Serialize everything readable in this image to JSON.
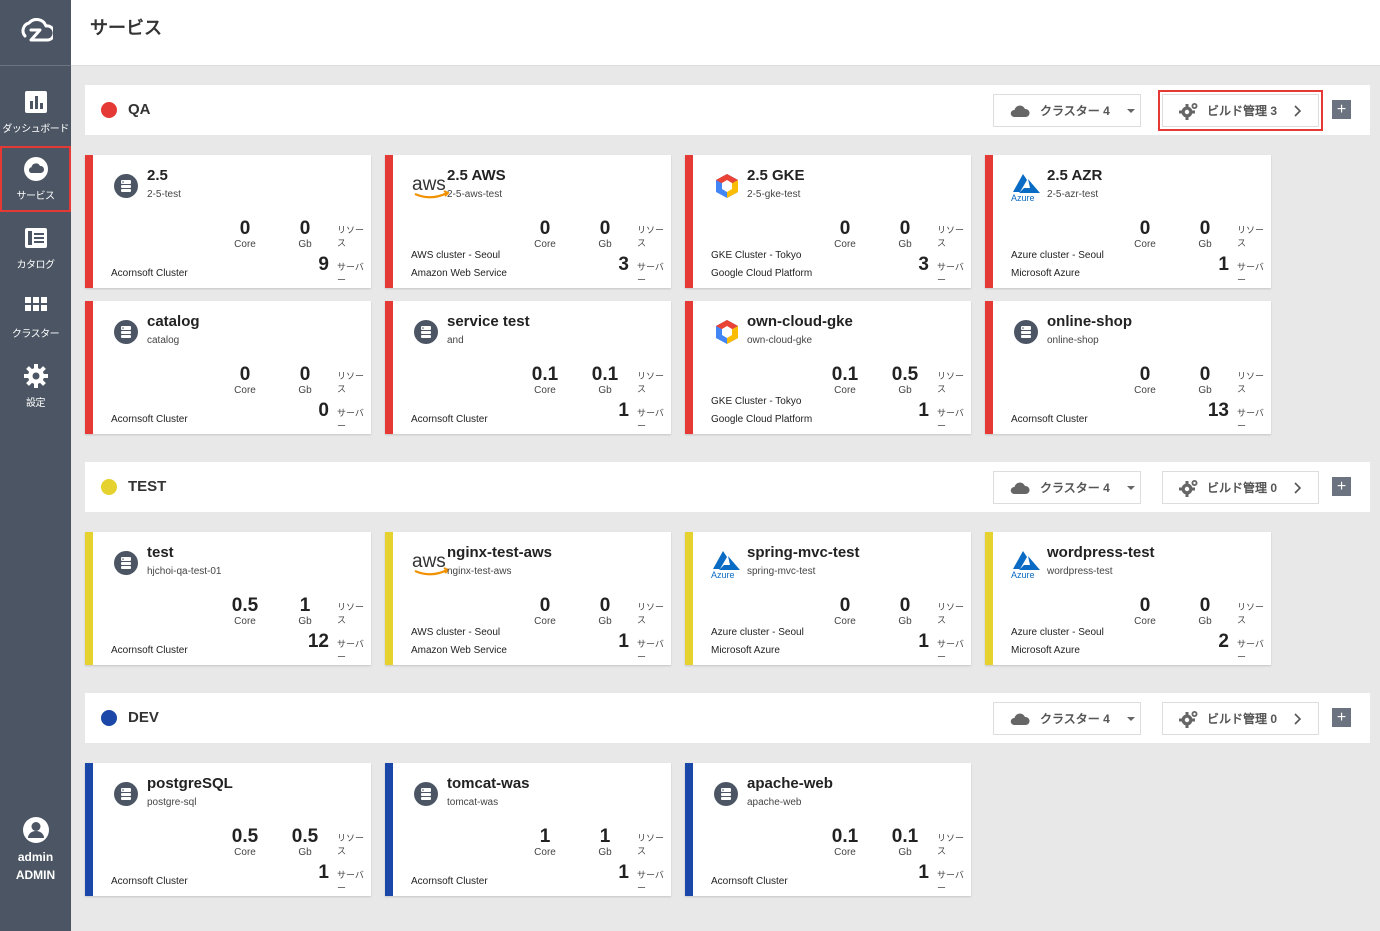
{
  "header": {
    "title": "サービス"
  },
  "sidebar": {
    "items": [
      {
        "label": "ダッシュボード",
        "icon": "dashboard-icon"
      },
      {
        "label": "サービス",
        "icon": "cloud-icon"
      },
      {
        "label": "カタログ",
        "icon": "catalog-icon"
      },
      {
        "label": "クラスター",
        "icon": "grid-icon"
      },
      {
        "label": "設定",
        "icon": "gear-icon"
      }
    ],
    "user": {
      "name": "admin",
      "role": "ADMIN"
    }
  },
  "labels": {
    "core": "Core",
    "gb": "Gb",
    "resource": "リソース",
    "server": "サーバー"
  },
  "groups": [
    {
      "name": "QA",
      "color": "#e53935",
      "cluster_label": "クラスター 4",
      "build_label": "ビルド管理 3",
      "cards": [
        {
          "title": "2.5",
          "sub": "2-5-test",
          "icon": "service-icon",
          "core": "0",
          "gb": "0",
          "servers": "9",
          "line1": "",
          "line2": "Acornsoft Cluster"
        },
        {
          "title": "2.5 AWS",
          "sub": "2-5-aws-test",
          "icon": "aws-icon",
          "core": "0",
          "gb": "0",
          "servers": "3",
          "line1": "AWS cluster - Seoul",
          "line2": "Amazon Web Service"
        },
        {
          "title": "2.5 GKE",
          "sub": "2-5-gke-test",
          "icon": "gke-icon",
          "core": "0",
          "gb": "0",
          "servers": "3",
          "line1": "GKE Cluster - Tokyo",
          "line2": "Google Cloud Platform"
        },
        {
          "title": "2.5 AZR",
          "sub": "2-5-azr-test",
          "icon": "azure-icon",
          "core": "0",
          "gb": "0",
          "servers": "1",
          "line1": "Azure cluster - Seoul",
          "line2": "Microsoft Azure"
        },
        {
          "title": "catalog",
          "sub": "catalog",
          "icon": "service-icon",
          "core": "0",
          "gb": "0",
          "servers": "0",
          "line1": "",
          "line2": "Acornsoft Cluster"
        },
        {
          "title": "service test",
          "sub": "and",
          "icon": "service-icon",
          "core": "0.1",
          "gb": "0.1",
          "servers": "1",
          "line1": "",
          "line2": "Acornsoft Cluster"
        },
        {
          "title": "own-cloud-gke",
          "sub": "own-cloud-gke",
          "icon": "gke-icon",
          "core": "0.1",
          "gb": "0.5",
          "servers": "1",
          "line1": "GKE Cluster - Tokyo",
          "line2": "Google Cloud Platform"
        },
        {
          "title": "online-shop",
          "sub": "online-shop",
          "icon": "service-icon",
          "core": "0",
          "gb": "0",
          "servers": "13",
          "line1": "",
          "line2": "Acornsoft Cluster"
        }
      ]
    },
    {
      "name": "TEST",
      "color": "#e5d22e",
      "cluster_label": "クラスター 4",
      "build_label": "ビルド管理 0",
      "cards": [
        {
          "title": "test",
          "sub": "hjchoi-qa-test-01",
          "icon": "service-icon",
          "core": "0.5",
          "gb": "1",
          "servers": "12",
          "line1": "",
          "line2": "Acornsoft Cluster"
        },
        {
          "title": "nginx-test-aws",
          "sub": "nginx-test-aws",
          "icon": "aws-icon",
          "core": "0",
          "gb": "0",
          "servers": "1",
          "line1": "AWS cluster - Seoul",
          "line2": "Amazon Web Service"
        },
        {
          "title": "spring-mvc-test",
          "sub": "spring-mvc-test",
          "icon": "azure-icon",
          "core": "0",
          "gb": "0",
          "servers": "1",
          "line1": "Azure cluster - Seoul",
          "line2": "Microsoft Azure"
        },
        {
          "title": "wordpress-test",
          "sub": "wordpress-test",
          "icon": "azure-icon",
          "core": "0",
          "gb": "0",
          "servers": "2",
          "line1": "Azure cluster - Seoul",
          "line2": "Microsoft Azure"
        }
      ]
    },
    {
      "name": "DEV",
      "color": "#1a47a8",
      "cluster_label": "クラスター 4",
      "build_label": "ビルド管理 0",
      "cards": [
        {
          "title": "postgreSQL",
          "sub": "postgre-sql",
          "icon": "service-icon",
          "core": "0.5",
          "gb": "0.5",
          "servers": "1",
          "line1": "",
          "line2": "Acornsoft Cluster"
        },
        {
          "title": "tomcat-was",
          "sub": "tomcat-was",
          "icon": "service-icon",
          "core": "1",
          "gb": "1",
          "servers": "1",
          "line1": "",
          "line2": "Acornsoft Cluster"
        },
        {
          "title": "apache-web",
          "sub": "apache-web",
          "icon": "service-icon",
          "core": "0.1",
          "gb": "0.1",
          "servers": "1",
          "line1": "",
          "line2": "Acornsoft Cluster"
        }
      ]
    }
  ]
}
